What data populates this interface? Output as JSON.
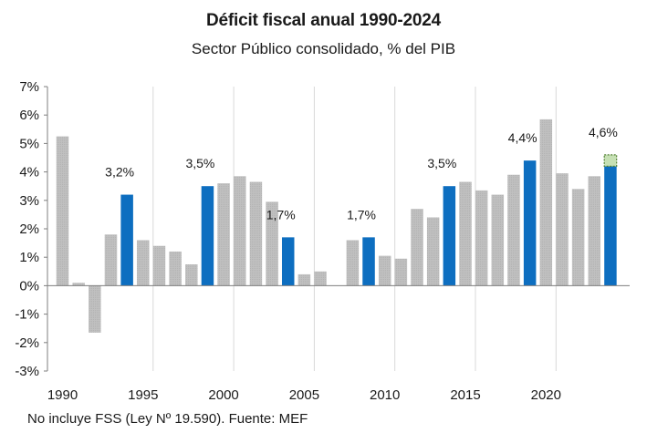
{
  "colors": {
    "regular_bar": "#c0c0c0",
    "highlight_bar": "#0d6ec0",
    "projected_bar_fill": "#c6e0b4",
    "projected_bar_border": "#548235",
    "grid": "#d9d9d9",
    "axis": "#7f7f7f"
  },
  "chart_data": {
    "type": "bar",
    "title": "Déficit fiscal anual 1990-2024",
    "subtitle": "Sector Público consolidado, % del PIB",
    "footnote": "No incluye FSS (Ley Nº 19.590). Fuente: MEF",
    "ylim": [
      -3,
      7
    ],
    "y_ticks": [
      "-3%",
      "-2%",
      "-1%",
      "0%",
      "1%",
      "2%",
      "3%",
      "4%",
      "5%",
      "6%",
      "7%"
    ],
    "y_tick_values": [
      -3,
      -2,
      -1,
      0,
      1,
      2,
      3,
      4,
      5,
      6,
      7
    ],
    "x_tick_labels": [
      "1990",
      "1995",
      "2000",
      "2005",
      "2010",
      "2015",
      "2020"
    ],
    "x_tick_years": [
      1990,
      1995,
      2000,
      2005,
      2010,
      2015,
      2020
    ],
    "grid": "vertical lines at labeled years",
    "years": [
      1990,
      1991,
      1992,
      1993,
      1994,
      1995,
      1996,
      1997,
      1998,
      1999,
      2000,
      2001,
      2002,
      2003,
      2004,
      2005,
      2006,
      2007,
      2008,
      2009,
      2010,
      2011,
      2012,
      2013,
      2014,
      2015,
      2016,
      2017,
      2018,
      2019,
      2020,
      2021,
      2022,
      2023,
      2024
    ],
    "values": [
      5.25,
      0.1,
      -1.65,
      1.8,
      3.2,
      1.6,
      1.4,
      1.2,
      0.75,
      3.5,
      3.6,
      3.85,
      3.65,
      2.95,
      1.7,
      0.4,
      0.5,
      0.0,
      1.6,
      1.7,
      1.05,
      0.95,
      2.7,
      2.4,
      3.5,
      3.65,
      3.35,
      3.2,
      3.9,
      4.4,
      5.85,
      3.95,
      3.4,
      3.85,
      4.6
    ],
    "highlighted_years": [
      1994,
      1999,
      2004,
      2009,
      2014,
      2019,
      2024
    ],
    "projected_year": 2024,
    "projected_segment": [
      4.2,
      4.6
    ],
    "data_labels": [
      {
        "year": 1994,
        "text": "3,2%"
      },
      {
        "year": 1999,
        "text": "3,5%"
      },
      {
        "year": 2004,
        "text": "1,7%"
      },
      {
        "year": 2009,
        "text": "1,7%"
      },
      {
        "year": 2014,
        "text": "3,5%"
      },
      {
        "year": 2019,
        "text": "4,4%"
      },
      {
        "year": 2024,
        "text": "4,6%"
      }
    ]
  }
}
